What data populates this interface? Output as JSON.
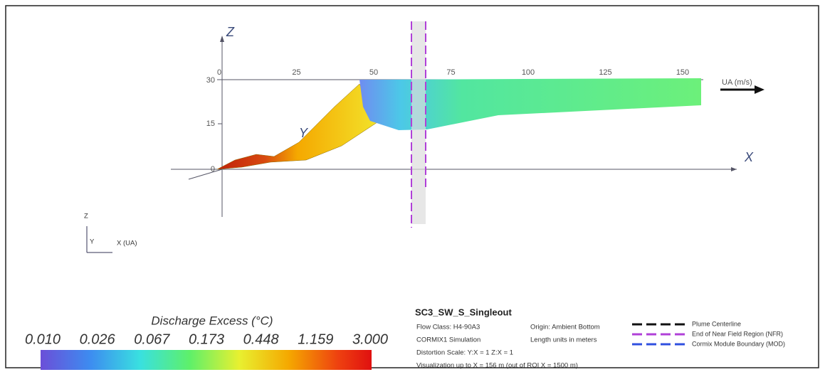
{
  "axes": {
    "z_label": "Z",
    "x_label": "X",
    "y_label": "Y",
    "ua_label": "UA (m/s)",
    "x_ticks": [
      "0",
      "25",
      "50",
      "75",
      "100",
      "125",
      "150"
    ],
    "z_ticks": [
      "30",
      "15",
      "0"
    ]
  },
  "orientation": {
    "z": "Z",
    "y": "Y",
    "x": "X (UA)"
  },
  "colorbar": {
    "title": "Discharge Excess  (°C)",
    "labels": [
      "0.010",
      "0.026",
      "0.067",
      "0.173",
      "0.448",
      "1.159",
      "3.000"
    ]
  },
  "info": {
    "title": "SC3_SW_S_Singleout",
    "flow_class": "Flow Class: H4-90A3",
    "origin": "Origin: Ambient Bottom",
    "simulation": "CORMIX1 Simulation",
    "units": "Length units in meters",
    "distortion": "Distortion Scale:  Y:X = 1    Z:X = 1",
    "visualization": "Visualization up to X = 156 m (out of ROI X = 1500 m)"
  },
  "legend": [
    "Plume Centerline",
    "End of Near Field Region (NFR)",
    "Cormix Module Boundary (MOD)"
  ]
}
